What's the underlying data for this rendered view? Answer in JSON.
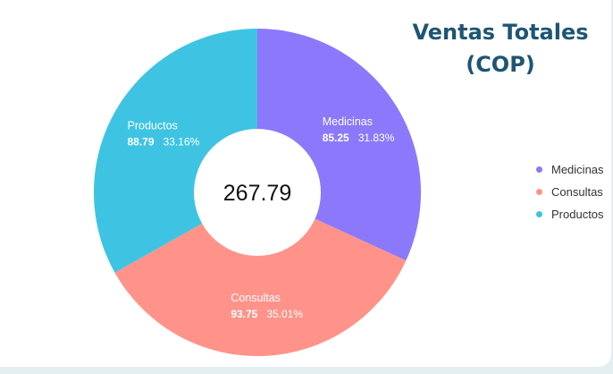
{
  "chart_data": {
    "type": "pie",
    "donut": true,
    "title": [
      "Ventas Totales",
      "(COP)"
    ],
    "center_total": "267.79",
    "legend_position": "right",
    "slices": [
      {
        "name": "Medicinas",
        "value": 85.25,
        "value_label": "85.25",
        "pct_label": "31.83%",
        "color": "#8b78fb"
      },
      {
        "name": "Consultas",
        "value": 93.75,
        "value_label": "93.75",
        "pct_label": "35.01%",
        "color": "#ff938a"
      },
      {
        "name": "Productos",
        "value": 88.79,
        "value_label": "88.79",
        "pct_label": "33.16%",
        "color": "#3ec4e2"
      }
    ]
  }
}
